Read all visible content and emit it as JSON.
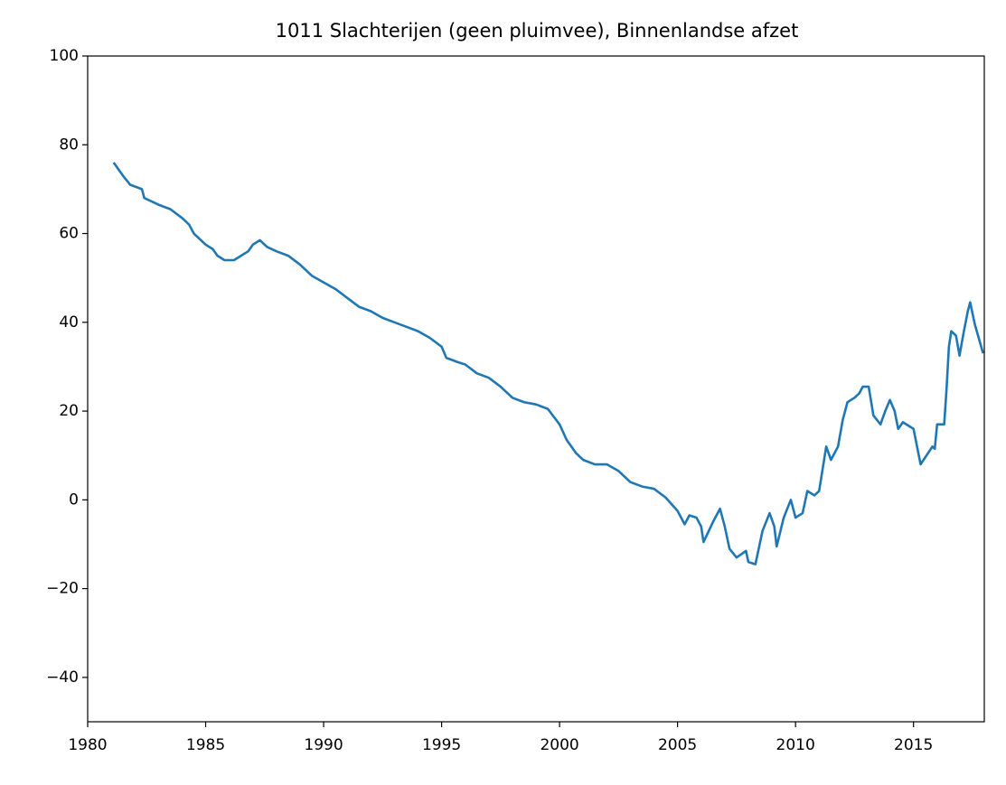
{
  "chart_data": {
    "type": "line",
    "title": "1011 Slachterijen (geen pluimvee), Binnenlandse afzet",
    "x": [
      1981.1,
      1981.5,
      1981.8,
      1982.3,
      1982.4,
      1983,
      1983.5,
      1984,
      1984.3,
      1984.5,
      1985,
      1985.3,
      1985.5,
      1985.8,
      1986.2,
      1986.5,
      1986.8,
      1987,
      1987.3,
      1987.6,
      1988,
      1988.5,
      1989,
      1989.5,
      1990,
      1990.5,
      1991,
      1991.5,
      1992,
      1992.5,
      1993,
      1993.5,
      1994,
      1994.5,
      1995,
      1995.2,
      1995.7,
      1996,
      1996.5,
      1997,
      1997.5,
      1998,
      1998.5,
      1999,
      1999.5,
      2000,
      2000.3,
      2000.7,
      2001,
      2001.5,
      2002,
      2002.5,
      2003,
      2003.5,
      2004,
      2004.5,
      2005,
      2005.3,
      2005.5,
      2005.8,
      2006,
      2006.1,
      2006.5,
      2006.8,
      2007,
      2007.2,
      2007.5,
      2007.9,
      2008,
      2008.3,
      2008.6,
      2008.9,
      2009.1,
      2009.2,
      2009.5,
      2009.8,
      2010,
      2010.3,
      2010.5,
      2010.8,
      2011,
      2011.3,
      2011.5,
      2011.8,
      2012,
      2012.2,
      2012.5,
      2012.7,
      2012.85,
      2013.1,
      2013.3,
      2013.6,
      2013.8,
      2014,
      2014.2,
      2014.35,
      2014.55,
      2015,
      2015.3,
      2015.8,
      2015.9,
      2016,
      2016.3,
      2016.4,
      2016.5,
      2016.6,
      2016.8,
      2016.95,
      2017.1,
      2017.3,
      2017.4,
      2017.6,
      2017.95
    ],
    "series": [
      {
        "color": "#1f77b4",
        "values": [
          76,
          73,
          71,
          70,
          68,
          66.5,
          65.5,
          63.5,
          62,
          60,
          57.5,
          56.5,
          55,
          54,
          54,
          55,
          56,
          57.5,
          58.5,
          57,
          56,
          55,
          53,
          50.5,
          49,
          47.5,
          45.5,
          43.5,
          42.5,
          41,
          40,
          39,
          38,
          36.5,
          34.5,
          32,
          31,
          30.5,
          28.5,
          27.5,
          25.5,
          23,
          22,
          21.5,
          20.5,
          17,
          13.5,
          10.5,
          9,
          8,
          8,
          6.5,
          4,
          3,
          2.5,
          0.5,
          -2.5,
          -5.5,
          -3.5,
          -4,
          -6,
          -9.5,
          -5,
          -2,
          -6,
          -11,
          -13,
          -11.5,
          -14,
          -14.5,
          -7,
          -3,
          -6,
          -10.5,
          -4,
          0,
          -4,
          -3,
          2,
          1,
          2,
          12,
          9,
          12,
          18,
          22,
          23,
          24,
          25.5,
          25.5,
          19,
          17,
          20,
          22.5,
          20,
          16,
          17.5,
          16,
          8,
          12,
          11.5,
          17,
          17,
          25,
          34.5,
          38,
          37,
          32.5,
          37,
          42.5,
          44.5,
          39.5,
          33
        ]
      }
    ],
    "xlim": [
      1980,
      2018
    ],
    "xticks": [
      1980,
      1985,
      1990,
      1995,
      2000,
      2005,
      2010,
      2015
    ],
    "ylim": [
      -50,
      100
    ],
    "yticks": [
      {
        "value": -40,
        "label": "−40"
      },
      {
        "value": -20,
        "label": "−20"
      },
      0,
      20,
      40,
      60,
      80,
      100
    ]
  }
}
